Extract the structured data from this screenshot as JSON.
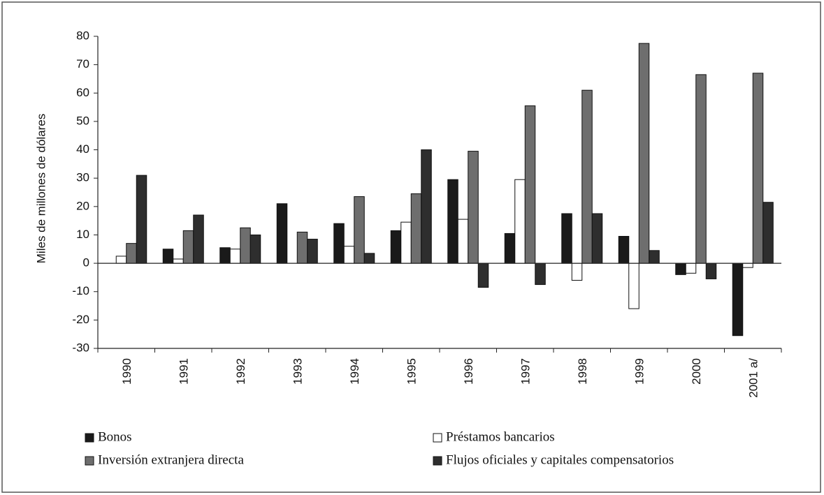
{
  "chart_data": {
    "type": "bar",
    "y_label": "Miles de millones de dólares",
    "categories": [
      "1990",
      "1991",
      "1992",
      "1993",
      "1994",
      "1995",
      "1996",
      "1997",
      "1998",
      "1999",
      "2000",
      "2001 a/"
    ],
    "series": [
      {
        "name": "Bonos",
        "color": "#1a1a1a",
        "values": [
          0,
          5,
          5.5,
          21,
          14,
          11.5,
          29.5,
          10.5,
          17.5,
          9.5,
          -4,
          -25.5
        ]
      },
      {
        "name": "Préstamos bancarios",
        "color": "#ffffff",
        "values": [
          2.5,
          1.5,
          5,
          0,
          6,
          14.5,
          15.5,
          29.5,
          -6,
          -16,
          -3.5,
          -1.5
        ]
      },
      {
        "name": "Inversión extranjera directa",
        "color": "#6e6e6e",
        "values": [
          7,
          11.5,
          12.5,
          11,
          23.5,
          24.5,
          39.5,
          55.5,
          61,
          77.5,
          66.5,
          67
        ]
      },
      {
        "name": "Flujos oficiales y capitales compensatorios",
        "color": "#2e2e2e",
        "values": [
          31,
          17,
          10,
          8.5,
          3.5,
          40,
          -8.5,
          -7.5,
          17.5,
          4.5,
          -5.5,
          21.5
        ]
      }
    ],
    "ylim": [
      -30,
      80
    ],
    "yticks": [
      -30,
      -20,
      -10,
      0,
      10,
      20,
      30,
      40,
      50,
      60,
      70,
      80
    ],
    "grid": false,
    "legend": "bottom"
  }
}
